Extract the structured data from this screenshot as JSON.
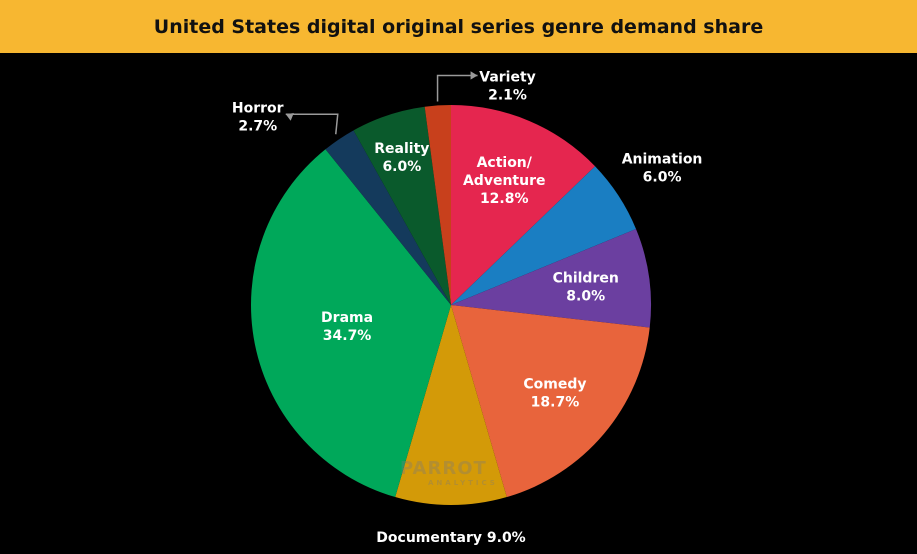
{
  "title": "United States digital original series genre demand share",
  "watermark": {
    "brand": "PARROT",
    "sub": "ANALYTICS"
  },
  "chart_data": {
    "type": "pie",
    "title": "United States digital original series genre demand share",
    "start_angle_deg": 0,
    "direction": "clockwise",
    "slices": [
      {
        "name": "Action/ Adventure",
        "lines": [
          "Action/",
          "Adventure"
        ],
        "value": 12.8,
        "label": "12.8%",
        "color": "#e5264f",
        "label_pos": "inside",
        "text_color": "#ffffff"
      },
      {
        "name": "Animation",
        "lines": [
          "Animation"
        ],
        "value": 6.0,
        "label": "6.0%",
        "color": "#1a7ec2",
        "label_pos": "outside",
        "text_color": "#ffffff"
      },
      {
        "name": "Children",
        "lines": [
          "Children"
        ],
        "value": 8.0,
        "label": "8.0%",
        "color": "#6b3fa0",
        "label_pos": "inside",
        "text_color": "#ffffff"
      },
      {
        "name": "Comedy",
        "lines": [
          "Comedy"
        ],
        "value": 18.7,
        "label": "18.7%",
        "color": "#e8643c",
        "label_pos": "inside",
        "text_color": "#ffffff"
      },
      {
        "name": "Documentary",
        "lines": [
          "Documentary 9.0%"
        ],
        "value": 9.0,
        "label": "",
        "color": "#d39a08",
        "label_pos": "bottom",
        "text_color": "#ffffff"
      },
      {
        "name": "Drama",
        "lines": [
          "Drama"
        ],
        "value": 34.7,
        "label": "34.7%",
        "color": "#00a85a",
        "label_pos": "inside",
        "text_color": "#ffffff"
      },
      {
        "name": "Horror",
        "lines": [
          "Horror"
        ],
        "value": 2.7,
        "label": "2.7%",
        "color": "#143a5c",
        "label_pos": "callout-left",
        "text_color": "#ffffff"
      },
      {
        "name": "Reality",
        "lines": [
          "Reality"
        ],
        "value": 6.0,
        "label": "6.0%",
        "color": "#0a5a2c",
        "label_pos": "inside",
        "text_color": "#ffffff"
      },
      {
        "name": "Variety",
        "lines": [
          "Variety"
        ],
        "value": 2.1,
        "label": "2.1%",
        "color": "#c8401c",
        "label_pos": "callout-top",
        "text_color": "#ffffff"
      }
    ]
  }
}
